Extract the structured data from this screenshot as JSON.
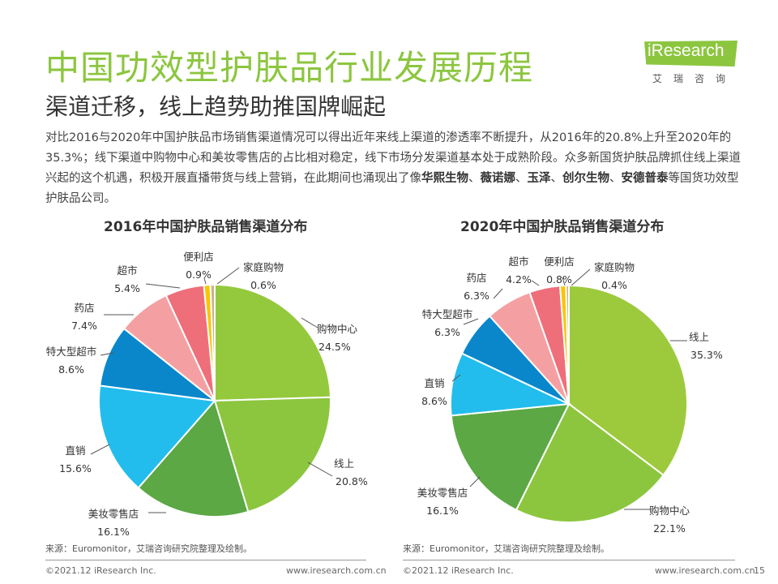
{
  "page": {
    "title": "中国功效型护肤品行业发展历程",
    "subtitle": "渠道迁移，线上趋势助推国牌崛起",
    "intro_plain": "对比2016与2020年中国护肤品市场销售渠道情况可以得出近年来线上渠道的渗透率不断提升，从2016年的20.8%上升至2020年的35.3%；线下渠道中购物中心和美妆零售店的占比相对稳定，线下市场分发渠道基本处于成熟阶段。众多新国货护肤品牌抓住线上渠道兴起的这个机遇，积极开展直播带货与线上营销，在此期间也涌现出了像",
    "intro_brands": [
      "华熙生物",
      "薇诺娜",
      "玉泽",
      "创尔生物",
      "安德普泰"
    ],
    "intro_sep": "、",
    "intro_end": "等国货功效型护肤品公司。",
    "page_number": "15"
  },
  "logo": {
    "text": "iResearch",
    "sub": "艾瑞咨询"
  },
  "colors": {
    "title_green": "#8cc63f",
    "online": "#9dca3c",
    "mall": "#95c93d",
    "cosmetics_store": "#5ba844",
    "direct": "#22bdec",
    "hypermarket": "#0a87cb",
    "pharmacy": "#f4a0a2",
    "supermarket": "#ee6f7a",
    "convenience": "#fbc400",
    "home_shopping": "#c9b28a"
  },
  "chart_data": [
    {
      "type": "pie",
      "title": "2016年中国护肤品销售渠道分布",
      "slices": [
        {
          "name": "购物中心",
          "value": 24.5,
          "label": "24.5%",
          "color": "#95c93d"
        },
        {
          "name": "线上",
          "value": 20.8,
          "label": "20.8%",
          "color": "#8cc63f"
        },
        {
          "name": "美妆零售店",
          "value": 16.1,
          "label": "16.1%",
          "color": "#5ba844"
        },
        {
          "name": "直销",
          "value": 15.6,
          "label": "15.6%",
          "color": "#22bdec"
        },
        {
          "name": "特大型超市",
          "value": 8.6,
          "label": "8.6%",
          "color": "#0a87cb"
        },
        {
          "name": "药店",
          "value": 7.4,
          "label": "7.4%",
          "color": "#f4a0a2"
        },
        {
          "name": "超市",
          "value": 5.4,
          "label": "5.4%",
          "color": "#ee6f7a"
        },
        {
          "name": "便利店",
          "value": 0.9,
          "label": "0.9%",
          "color": "#fbc400"
        },
        {
          "name": "家庭购物",
          "value": 0.6,
          "label": "0.6%",
          "color": "#c9b28a"
        }
      ],
      "source": "来源：Euromonitor，艾瑞咨询研究院整理及绘制。"
    },
    {
      "type": "pie",
      "title": "2020年中国护肤品销售渠道分布",
      "slices": [
        {
          "name": "线上",
          "value": 35.3,
          "label": "35.3%",
          "color": "#9dca3c"
        },
        {
          "name": "购物中心",
          "value": 22.1,
          "label": "22.1%",
          "color": "#8cc63f"
        },
        {
          "name": "美妆零售店",
          "value": 16.1,
          "label": "16.1%",
          "color": "#5ba844"
        },
        {
          "name": "直销",
          "value": 8.6,
          "label": "8.6%",
          "color": "#22bdec"
        },
        {
          "name": "特大型超市",
          "value": 6.3,
          "label": "6.3%",
          "color": "#0a87cb"
        },
        {
          "name": "药店",
          "value": 6.3,
          "label": "6.3%",
          "color": "#f4a0a2"
        },
        {
          "name": "超市",
          "value": 4.2,
          "label": "4.2%",
          "color": "#ee6f7a"
        },
        {
          "name": "便利店",
          "value": 0.8,
          "label": "0.8%",
          "color": "#fbc400"
        },
        {
          "name": "家庭购物",
          "value": 0.4,
          "label": "0.4%",
          "color": "#c9b28a"
        }
      ],
      "source": "来源：Euromonitor，艾瑞咨询研究院整理及绘制。"
    }
  ],
  "footer": {
    "copyright": "©2021.12 iResearch Inc.",
    "website": "www.iresearch.com.cn"
  }
}
